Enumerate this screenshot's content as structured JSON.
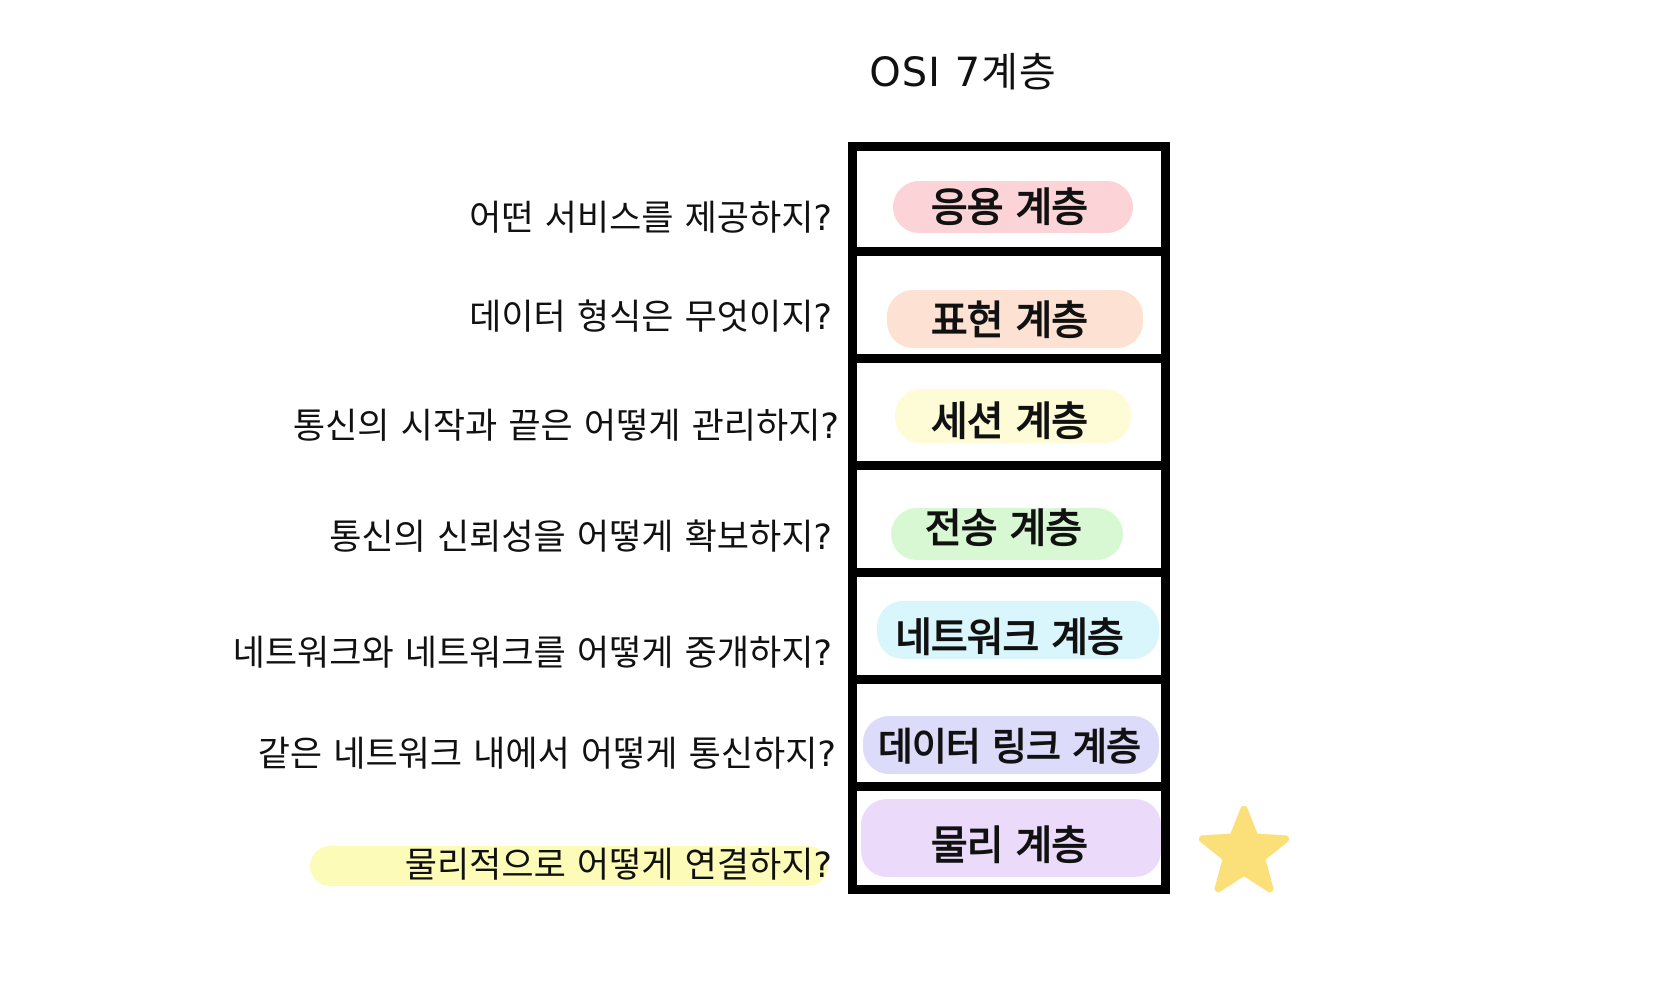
{
  "title": "OSI 7계층",
  "layers": [
    {
      "label": "응용 계층",
      "question": "어떤 서비스를 제공하지?",
      "color": "#fcd3d6"
    },
    {
      "label": "표현 계층",
      "question": "데이터 형식은 무엇이지?",
      "color": "#fde1d3"
    },
    {
      "label": "세션 계층",
      "question": "통신의 시작과 끝은 어떻게 관리하지?",
      "color": "#fdfcd7"
    },
    {
      "label": "전송 계층",
      "question": "통신의 신뢰성을 어떻게 확보하지?",
      "color": "#d8f8d4"
    },
    {
      "label": "네트워크 계층",
      "question": "네트워크와 네트워크를 어떻게 중개하지?",
      "color": "#d8f6fb"
    },
    {
      "label": "데이터 링크 계층",
      "question": "같은 네트워크 내에서 어떻게 통신하지?",
      "color": "#dcdcfa"
    },
    {
      "label": "물리 계층",
      "question": "물리적으로 어떻게 연결하지?",
      "color": "#ecdafb"
    }
  ],
  "question_highlight_color": "#fcfbb8",
  "star_color": "#fbe07a"
}
